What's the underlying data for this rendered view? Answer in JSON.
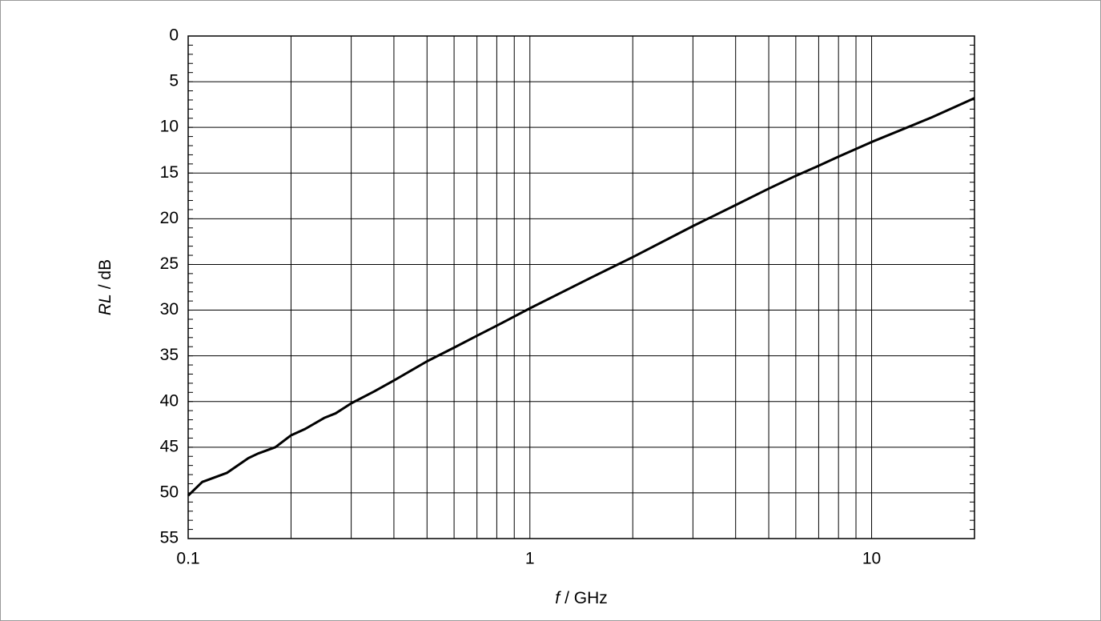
{
  "chart_data": {
    "type": "line",
    "xlabel_symbol": "f",
    "xlabel_rest": "/ GHz",
    "ylabel_symbol": "RL",
    "ylabel_rest": "/ dB",
    "xscale": "log",
    "yinverted": true,
    "grid": true,
    "x": [
      0.1,
      0.11,
      0.13,
      0.15,
      0.16,
      0.18,
      0.2,
      0.22,
      0.25,
      0.27,
      0.3,
      0.35,
      0.4,
      0.5,
      0.6,
      0.7,
      0.8,
      1,
      1.5,
      2,
      3,
      4,
      5,
      6,
      7,
      8,
      10,
      15,
      20
    ],
    "series": [
      {
        "color": "#000000",
        "values": [
          50.3,
          48.8,
          47.8,
          46.2,
          45.7,
          45.0,
          43.7,
          43.0,
          41.8,
          41.3,
          40.2,
          38.9,
          37.7,
          35.6,
          34.1,
          32.8,
          31.7,
          29.8,
          26.5,
          24.2,
          20.8,
          18.5,
          16.7,
          15.3,
          14.2,
          13.2,
          11.6,
          8.9,
          6.8
        ]
      }
    ],
    "xlim": [
      0.1,
      20
    ],
    "ylim": [
      0,
      55
    ],
    "xticks": [
      0.1,
      1,
      10
    ],
    "xminor": [
      0.2,
      0.3,
      0.4,
      0.5,
      0.6,
      0.7,
      0.8,
      0.9,
      2,
      3,
      4,
      5,
      6,
      7,
      8,
      9
    ],
    "yticks": [
      0,
      5,
      10,
      15,
      20,
      25,
      30,
      35,
      40,
      45,
      50,
      55
    ],
    "yminor_step": 1
  }
}
